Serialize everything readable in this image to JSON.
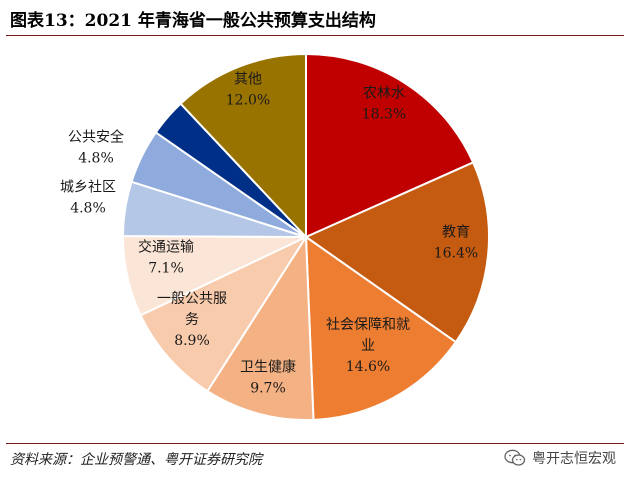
{
  "title": "图表13：2021 年青海省一般公共预算支出结构",
  "source": "资料来源：企业预警通、粤开证券研究院",
  "watermark": "粤开志恒宏观",
  "chart_data": {
    "type": "pie",
    "title": "图表13：2021 年青海省一般公共预算支出结构",
    "start_angle": "12 o'clock",
    "direction": "clockwise",
    "slices": [
      {
        "lines": [
          "农林水"
        ],
        "value_label": "18.3%",
        "value": 18.3,
        "color": "#C00000"
      },
      {
        "lines": [
          "教育"
        ],
        "value_label": "16.4%",
        "value": 16.4,
        "color": "#C55A11"
      },
      {
        "lines": [
          "社会保障和就",
          "业"
        ],
        "value_label": "14.6%",
        "value": 14.6,
        "color": "#ED7D31"
      },
      {
        "lines": [
          "卫生健康"
        ],
        "value_label": "9.7%",
        "value": 9.7,
        "color": "#F4B183"
      },
      {
        "lines": [
          "一般公共服",
          "务"
        ],
        "value_label": "8.9%",
        "value": 8.9,
        "color": "#F8CBAD"
      },
      {
        "lines": [
          "交通运输"
        ],
        "value_label": "7.1%",
        "value": 7.1,
        "color": "#FBE5D6"
      },
      {
        "lines": [
          "城乡社区"
        ],
        "value_label": "4.8%",
        "value": 4.8,
        "color": "#B4C7E7"
      },
      {
        "lines": [
          "公共安全"
        ],
        "value_label": "4.8%",
        "value": 4.8,
        "color": "#8FAADC"
      },
      {
        "lines": [
          ""
        ],
        "value_label": "",
        "value": 3.3,
        "color": "#002F87"
      },
      {
        "lines": [
          "其他"
        ],
        "value_label": "12.0%",
        "value": 12.0,
        "color": "#997300"
      }
    ]
  }
}
